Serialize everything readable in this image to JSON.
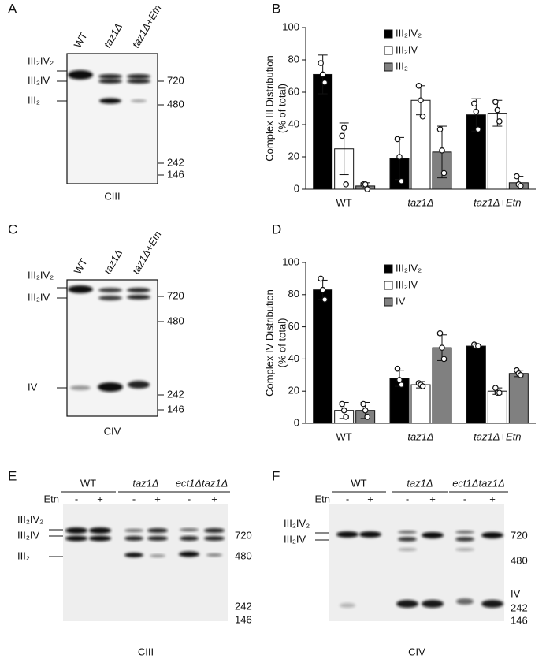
{
  "panels": {
    "A": {
      "letter": "A",
      "lanes": [
        "WT",
        "taz1Δ",
        "taz1Δ+Etn"
      ],
      "complexes": [
        "III₂IV₂",
        "III₂IV",
        "III₂"
      ],
      "markers": [
        720,
        480,
        242,
        146
      ],
      "caption": "CIII"
    },
    "B": {
      "letter": "B"
    },
    "C": {
      "letter": "C",
      "lanes": [
        "WT",
        "taz1Δ",
        "taz1Δ+Etn"
      ],
      "complexes": [
        "III₂IV₂",
        "III₂IV",
        "IV"
      ],
      "markers": [
        720,
        480,
        242,
        146
      ],
      "caption": "CIV"
    },
    "D": {
      "letter": "D"
    },
    "E": {
      "letter": "E",
      "groups": [
        "WT",
        "taz1Δ",
        "ect1Δtaz1Δ"
      ],
      "treatment_label": "Etn",
      "treatments": [
        "-",
        "+"
      ],
      "complexes": [
        "III₂IV₂",
        "III₂IV",
        "III₂"
      ],
      "markers": [
        720,
        480,
        242,
        146
      ],
      "caption": "CIII"
    },
    "F": {
      "letter": "F",
      "groups": [
        "WT",
        "taz1Δ",
        "ect1Δtaz1Δ"
      ],
      "treatment_label": "Etn",
      "treatments": [
        "-",
        "+"
      ],
      "complexes": [
        "III₂IV₂",
        "III₂IV"
      ],
      "markers": [
        "IV",
        720,
        480,
        242,
        146
      ],
      "caption": "CIV"
    }
  },
  "chart_data": [
    {
      "type": "bar",
      "ylabel": [
        "Complex III Distribution",
        "(% of total)"
      ],
      "categories": [
        "WT",
        "taz1Δ",
        "taz1Δ+Etn"
      ],
      "series": [
        {
          "name": "III₂IV₂",
          "color": "#000000",
          "values": [
            71,
            19,
            46
          ],
          "errors": [
            12,
            13,
            10
          ],
          "points": [
            [
              78,
              71,
              66
            ],
            [
              31,
              20,
              5
            ],
            [
              53,
              48,
              37
            ]
          ]
        },
        {
          "name": "III₂IV",
          "color": "#ffffff",
          "values": [
            25,
            55,
            47
          ],
          "errors": [
            16,
            9,
            8
          ],
          "points": [
            [
              33,
              38,
              3
            ],
            [
              64,
              55,
              45
            ],
            [
              54,
              49,
              42
            ]
          ]
        },
        {
          "name": "III₂",
          "color": "#808080",
          "values": [
            2,
            23,
            4
          ],
          "errors": [
            2,
            16,
            4
          ],
          "points": [
            [
              3,
              3,
              0
            ],
            [
              37,
              24,
              10
            ],
            [
              8,
              3,
              2
            ]
          ]
        }
      ],
      "ylim": [
        0,
        100
      ],
      "yticks": [
        0,
        20,
        40,
        60,
        80,
        100
      ],
      "legend": "top-right"
    },
    {
      "type": "bar",
      "ylabel": [
        "Complex IV Distribution",
        "(% of total)"
      ],
      "categories": [
        "WT",
        "taz1Δ",
        "taz1Δ+Etn"
      ],
      "series": [
        {
          "name": "III₂IV₂",
          "color": "#000000",
          "values": [
            83,
            28,
            48
          ],
          "errors": [
            6,
            5,
            1
          ],
          "points": [
            [
              90,
              83,
              77
            ],
            [
              34,
              27,
              24
            ],
            [
              49,
              48,
              48
            ]
          ]
        },
        {
          "name": "III₂IV",
          "color": "#ffffff",
          "values": [
            8,
            24,
            20
          ],
          "errors": [
            5,
            2,
            2
          ],
          "points": [
            [
              12,
              8,
              4
            ],
            [
              25,
              24,
              23
            ],
            [
              22,
              19,
              19
            ]
          ]
        },
        {
          "name": "IV",
          "color": "#808080",
          "values": [
            8,
            47,
            31
          ],
          "errors": [
            5,
            8,
            2
          ],
          "points": [
            [
              12,
              8,
              4
            ],
            [
              56,
              47,
              40
            ],
            [
              33,
              31,
              30
            ]
          ]
        }
      ],
      "ylim": [
        0,
        100
      ],
      "yticks": [
        0,
        20,
        40,
        60,
        80,
        100
      ],
      "legend": "top-right"
    }
  ]
}
